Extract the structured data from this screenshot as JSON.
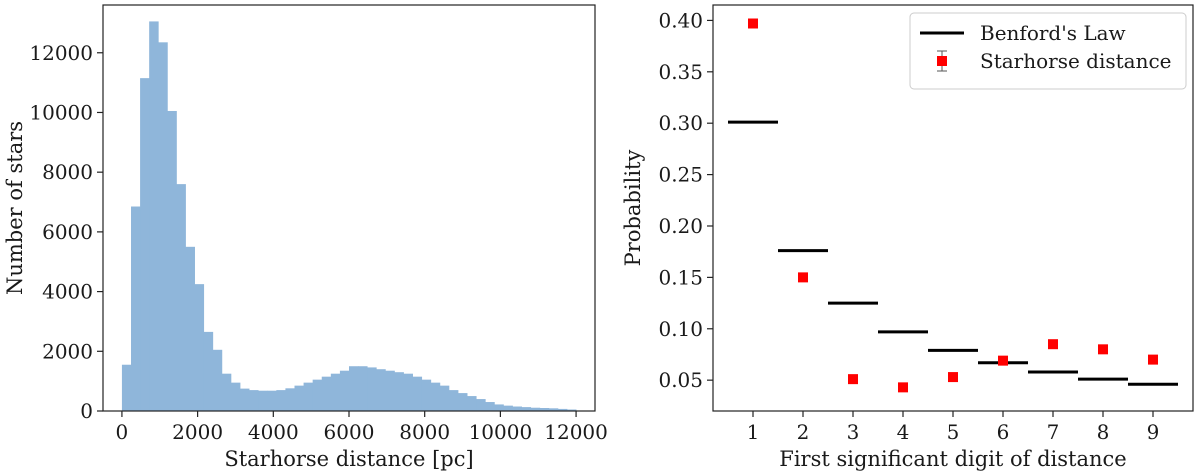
{
  "chart_data": [
    {
      "type": "bar",
      "subtype": "histogram",
      "xlabel": "Starhorse distance [pc]",
      "ylabel": "Number of stars",
      "xlim": [
        -500,
        12500
      ],
      "ylim": [
        0,
        13600
      ],
      "xticks": [
        0,
        2000,
        4000,
        6000,
        8000,
        10000,
        12000
      ],
      "yticks": [
        0,
        2000,
        4000,
        6000,
        8000,
        10000,
        12000
      ],
      "bin_width": 240,
      "bin_start": 0,
      "color": "#8fb6da",
      "values": [
        1550,
        6850,
        11150,
        13050,
        12350,
        10050,
        7600,
        5500,
        4250,
        2650,
        2050,
        1250,
        950,
        750,
        700,
        680,
        680,
        700,
        760,
        850,
        950,
        1050,
        1150,
        1250,
        1350,
        1500,
        1500,
        1460,
        1400,
        1350,
        1300,
        1250,
        1150,
        1050,
        950,
        850,
        700,
        600,
        500,
        400,
        300,
        220,
        180,
        150,
        130,
        110,
        100,
        90,
        70,
        50
      ]
    },
    {
      "type": "scatter",
      "xlabel": "First significant digit of distance",
      "ylabel": "Probability",
      "xlim": [
        0.2,
        9.8
      ],
      "ylim": [
        0.02,
        0.415
      ],
      "xticks": [
        1,
        2,
        3,
        4,
        5,
        6,
        7,
        8,
        9
      ],
      "yticks": [
        0.05,
        0.1,
        0.15,
        0.2,
        0.25,
        0.3,
        0.35,
        0.4
      ],
      "legend": {
        "position": "upper-right",
        "entries": [
          {
            "label": "Benford's Law",
            "style": "line",
            "color": "#000000"
          },
          {
            "label": "Starhorse distance",
            "style": "square-errorbar",
            "color": "#ff0000"
          }
        ]
      },
      "series": [
        {
          "name": "Benford's Law",
          "style": "step",
          "x": [
            1,
            2,
            3,
            4,
            5,
            6,
            7,
            8,
            9
          ],
          "values": [
            0.301,
            0.176,
            0.125,
            0.097,
            0.079,
            0.067,
            0.058,
            0.051,
            0.046
          ]
        },
        {
          "name": "Starhorse distance",
          "style": "marker",
          "x": [
            1,
            2,
            3,
            4,
            5,
            6,
            7,
            8,
            9
          ],
          "values": [
            0.397,
            0.15,
            0.051,
            0.043,
            0.053,
            0.069,
            0.085,
            0.08,
            0.07
          ],
          "error": 0.002
        }
      ]
    }
  ]
}
